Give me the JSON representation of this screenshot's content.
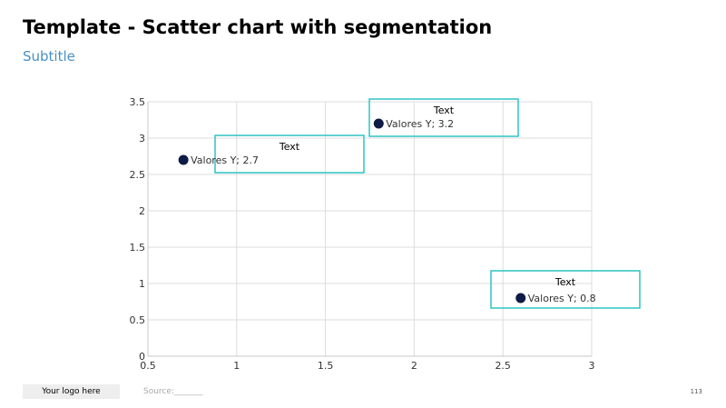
{
  "header": {
    "title": "Template - Scatter chart with segmentation",
    "subtitle": "Subtitle"
  },
  "footer": {
    "logo_label": "Your logo here",
    "source_label": "Source:_______",
    "page_number": "113"
  },
  "colors": {
    "point": "#0d1b45",
    "callout_border": "#2ec4c4",
    "subtitle": "#4a90c2",
    "grid": "#dcdcdc"
  },
  "chart_data": {
    "type": "scatter",
    "grid": true,
    "xlim": [
      0.5,
      3
    ],
    "ylim": [
      0,
      3.5
    ],
    "x_ticks": [
      0.5,
      1,
      1.5,
      2,
      2.5,
      3
    ],
    "y_ticks": [
      0,
      0.5,
      1,
      1.5,
      2,
      2.5,
      3,
      3.5
    ],
    "x_tick_labels": [
      "0.5",
      "1",
      "1.5",
      "2",
      "2.5",
      "3"
    ],
    "y_tick_labels": [
      "0",
      "0.5",
      "1",
      "1.5",
      "2",
      "2.5",
      "3",
      "3.5"
    ],
    "points": [
      {
        "x": 0.7,
        "y": 2.7,
        "label": "Valores Y; 2.7",
        "callout": "Text"
      },
      {
        "x": 1.8,
        "y": 3.2,
        "label": "Valores Y; 3.2",
        "callout": "Text"
      },
      {
        "x": 2.6,
        "y": 0.8,
        "label": "Valores Y; 0.8",
        "callout": "Text"
      }
    ]
  }
}
